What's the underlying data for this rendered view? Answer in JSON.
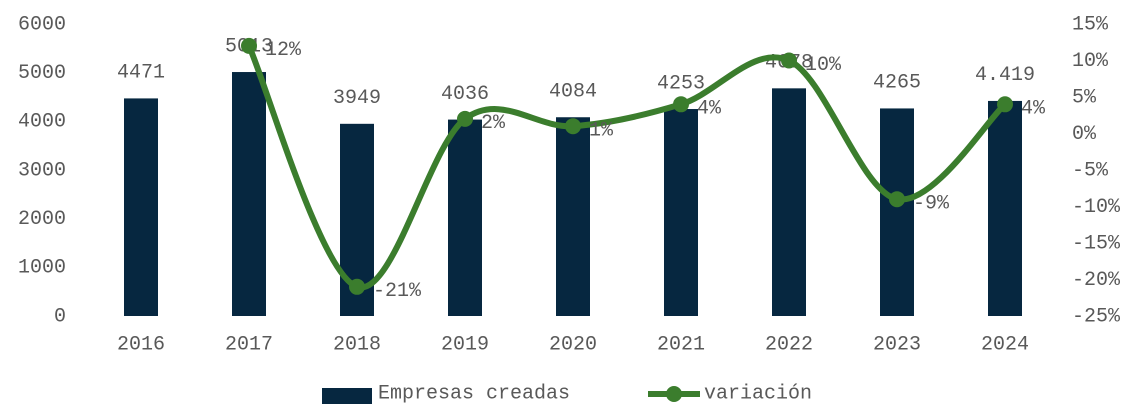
{
  "chart_data": {
    "type": "bar-line",
    "categories": [
      "2016",
      "2017",
      "2018",
      "2019",
      "2020",
      "2021",
      "2022",
      "2023",
      "2024"
    ],
    "series": [
      {
        "name": "Empresas creadas",
        "color": "#062740",
        "type": "bar",
        "values": [
          4471,
          5013,
          3949,
          4036,
          4084,
          4253,
          4678,
          4265,
          4419
        ],
        "value_labels": [
          "4471",
          "5013",
          "3949",
          "4036",
          "4084",
          "4253",
          "4678",
          "4265",
          "4.419"
        ]
      },
      {
        "name": "variación",
        "color": "#3b7d2d",
        "type": "line",
        "axis": "y2",
        "values": [
          null,
          12,
          -21,
          2,
          1,
          4,
          10,
          -9,
          4
        ],
        "value_labels": [
          null,
          "12%",
          "-21%",
          "2%",
          "1%",
          "4%",
          "10%",
          "-9%",
          "4%"
        ]
      }
    ],
    "ylim": [
      0,
      6000
    ],
    "yticks": [
      0,
      1000,
      2000,
      3000,
      4000,
      5000,
      6000
    ],
    "y2lim": [
      -25,
      15
    ],
    "y2ticks": [
      {
        "value": -25,
        "label": "-25%"
      },
      {
        "value": -20,
        "label": "-20%"
      },
      {
        "value": -15,
        "label": "-15%"
      },
      {
        "value": -10,
        "label": "-10%"
      },
      {
        "value": -5,
        "label": "-5%"
      },
      {
        "value": 0,
        "label": "0%"
      },
      {
        "value": 5,
        "label": "5%"
      },
      {
        "value": 10,
        "label": "10%"
      },
      {
        "value": 15,
        "label": "15%"
      }
    ],
    "legend": "bottom"
  }
}
